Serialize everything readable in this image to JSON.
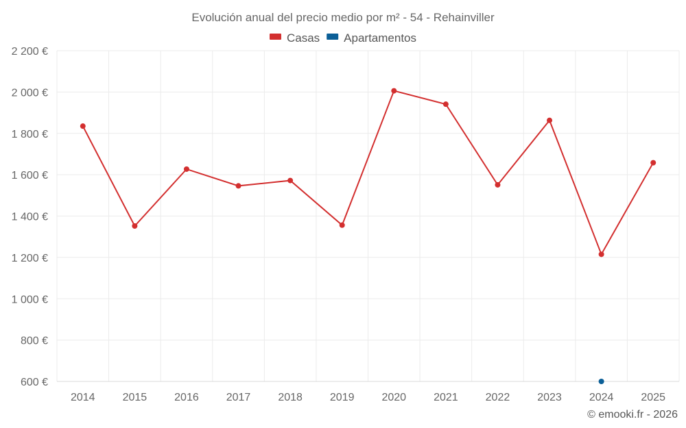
{
  "chart_data": {
    "type": "line",
    "title": "Evolución anual del precio medio por m² - 54 - Rehainviller",
    "categories": [
      "2014",
      "2015",
      "2016",
      "2017",
      "2018",
      "2019",
      "2020",
      "2021",
      "2022",
      "2023",
      "2024",
      "2025"
    ],
    "ylim": [
      600,
      2200
    ],
    "y_ticks": [
      600,
      800,
      1000,
      1200,
      1400,
      1600,
      1800,
      2000,
      2200
    ],
    "y_tick_labels": [
      "600 €",
      "800 €",
      "1 000 €",
      "1 200 €",
      "1 400 €",
      "1 600 €",
      "1 800 €",
      "2 000 €",
      "2 200 €"
    ],
    "grid": true,
    "legend_position": "top-center",
    "series": [
      {
        "name": "Casas",
        "color": "#d32f2f",
        "values": [
          1835,
          1352,
          1627,
          1546,
          1572,
          1356,
          2006,
          1941,
          1551,
          1863,
          1215,
          1658
        ]
      },
      {
        "name": "Apartamentos",
        "color": "#0b5f97",
        "values": [
          null,
          null,
          null,
          null,
          null,
          null,
          null,
          null,
          null,
          null,
          600,
          null
        ]
      }
    ]
  },
  "credit": "© emooki.fr - 2026"
}
